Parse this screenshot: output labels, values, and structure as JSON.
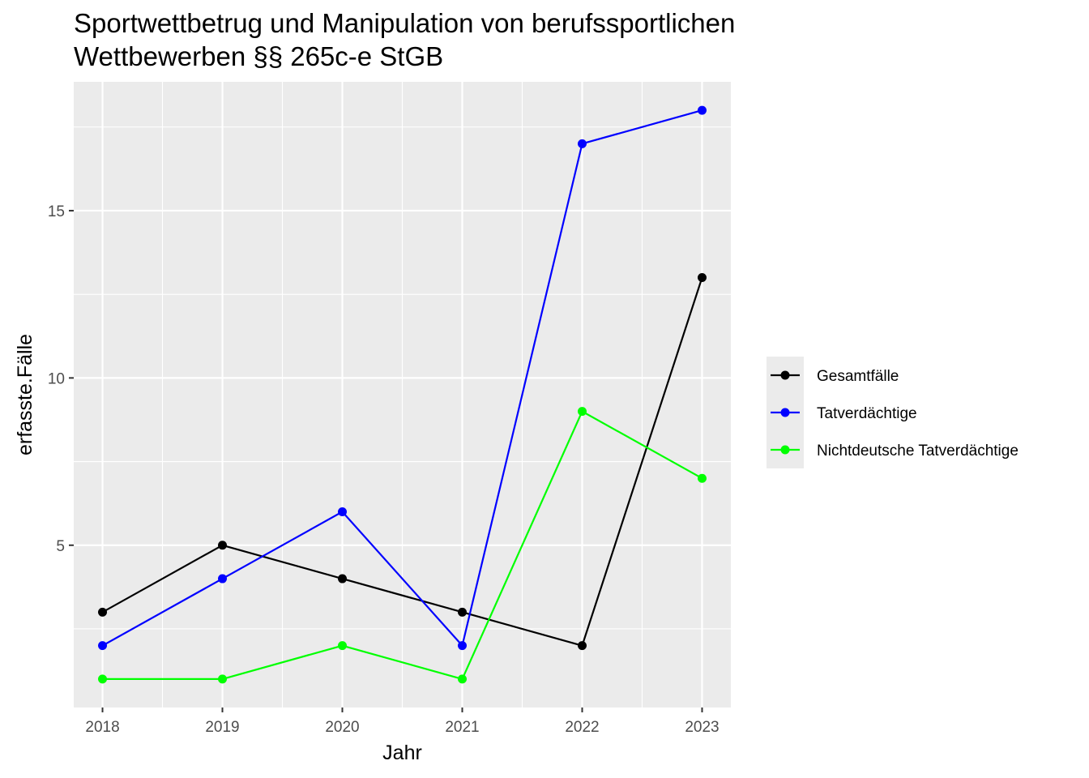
{
  "chart_data": {
    "type": "line",
    "title_lines": [
      "Sportwettbetrug und Manipulation von berufssportlichen",
      "Wettbewerben §§ 265c-e StGB"
    ],
    "xlabel": "Jahr",
    "ylabel": "erfasste.Fälle",
    "x": [
      2018,
      2019,
      2020,
      2021,
      2022,
      2023
    ],
    "x_tick_labels": [
      "2018",
      "2019",
      "2020",
      "2021",
      "2022",
      "2023"
    ],
    "y_ticks": [
      5,
      10,
      15
    ],
    "y_tick_labels": [
      "5",
      "10",
      "15"
    ],
    "xlim": [
      2017.76,
      2023.24
    ],
    "ylim": [
      0.15,
      18.85
    ],
    "grid": true,
    "legend_position": "right",
    "series": [
      {
        "name": "Gesamtfälle",
        "color": "#000000",
        "values": [
          3,
          5,
          4,
          3,
          2,
          13
        ]
      },
      {
        "name": "Tatverdächtige",
        "color": "#0000ff",
        "values": [
          2,
          4,
          6,
          2,
          17,
          18
        ]
      },
      {
        "name": "Nichtdeutsche Tatverdächtige",
        "color": "#00ff00",
        "values": [
          1,
          1,
          2,
          1,
          9,
          7
        ]
      }
    ]
  }
}
